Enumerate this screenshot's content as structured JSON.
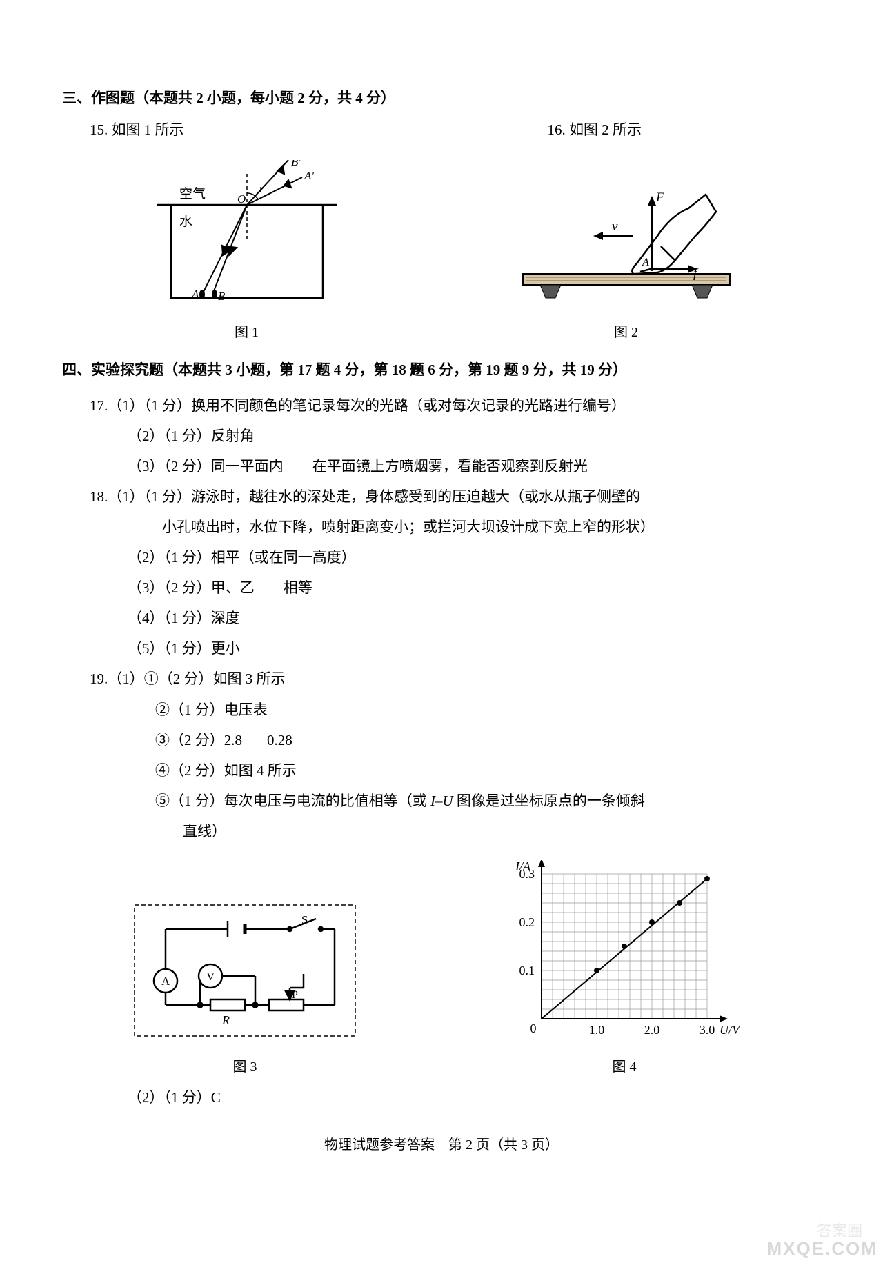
{
  "section3": {
    "header": "三、作图题（本题共 2 小题，每小题 2 分，共 4 分）",
    "q15": "15. 如图 1 所示",
    "q16": "16. 如图 2 所示",
    "fig1": {
      "caption": "图 1",
      "labels": {
        "air": "空气",
        "water": "水",
        "O": "O",
        "A": "A",
        "B": "B",
        "Ap": "A'",
        "Bp": "B'",
        "r": "r"
      },
      "colors": {
        "stroke": "#000000",
        "fill": "#ffffff"
      },
      "line_width": 2
    },
    "fig2": {
      "caption": "图 2",
      "labels": {
        "F": "F",
        "v": "v",
        "A": "A",
        "f": "f"
      },
      "colors": {
        "stroke": "#000000",
        "fill": "#ffffff",
        "wood": "#cccccc"
      },
      "line_width": 2
    }
  },
  "section4": {
    "header": "四、实验探究题（本题共 3 小题，第 17 题 4 分，第 18 题 6 分，第 19 题 9 分，共 19 分）",
    "q17": {
      "l1": "17.（1）（1 分）换用不同颜色的笔记录每次的光路（或对每次记录的光路进行编号）",
      "l2": "（2）（1 分）反射角",
      "l3": "（3）（2 分）同一平面内　　在平面镜上方喷烟雾，看能否观察到反射光"
    },
    "q18": {
      "l1": "18.（1）（1 分）游泳时，越往水的深处走，身体感受到的压迫越大（或水从瓶子侧壁的",
      "l1b": "小孔喷出时，水位下降，喷射距离变小；或拦河大坝设计成下宽上窄的形状）",
      "l2": "（2）（1 分）相平（或在同一高度）",
      "l3": "（3）（2 分）甲、乙　　相等",
      "l4": "（4）（1 分）深度",
      "l5": "（5）（1 分）更小"
    },
    "q19": {
      "l1": "19.（1）①（2 分）如图 3 所示",
      "l2": "②（1 分）电压表",
      "l3a": "③（2 分）2.8",
      "l3b": "0.28",
      "l4": "④（2 分）如图 4 所示",
      "l5a": "⑤（1 分）每次电压与电流的比值相等（或 ",
      "l5i": "I–U",
      "l5b": " 图像是过坐标原点的一条倾斜",
      "l5c": "直线）",
      "l6": "（2）（1 分）C"
    },
    "fig3": {
      "caption": "图 3",
      "labels": {
        "A": "A",
        "V": "V",
        "S": "S",
        "P": "P",
        "R": "R"
      },
      "colors": {
        "stroke": "#000000",
        "dash": "4,3"
      },
      "line_width": 2
    },
    "fig4": {
      "caption": "图 4",
      "type": "scatter-line",
      "xlabel": "U/V",
      "ylabel": "I/A",
      "xlim": [
        0,
        3.0
      ],
      "ylim": [
        0,
        0.3
      ],
      "xticks": [
        "0",
        "1.0",
        "2.0",
        "3.0"
      ],
      "yticks": [
        "0.1",
        "0.2",
        "0.3"
      ],
      "grid_minor": 5,
      "points": [
        {
          "x": 1.0,
          "y": 0.1
        },
        {
          "x": 1.5,
          "y": 0.15
        },
        {
          "x": 2.0,
          "y": 0.2
        },
        {
          "x": 2.5,
          "y": 0.24
        },
        {
          "x": 3.0,
          "y": 0.29
        }
      ],
      "line_through_origin": true,
      "colors": {
        "axis": "#000000",
        "grid": "#9a9a9a",
        "line": "#000000",
        "point": "#000000"
      },
      "axis_fontsize": 18,
      "line_width": 2,
      "point_radius": 4
    }
  },
  "footer": "物理试题参考答案　第 2 页（共 3 页）",
  "watermark2": "答案圈",
  "watermark": "MXQE.COM"
}
